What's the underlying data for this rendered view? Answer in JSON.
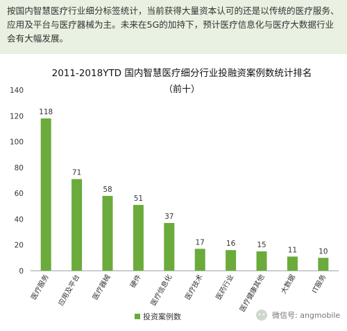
{
  "intro_text": "按国内智慧医疗行业细分标签统计，当前获得大量资本认可的还是以传统的医疗服务、应用及平台与医疗器械为主。未来在5G的加持下，预计医疗信息化与医疗大数据行业会有大幅发展。",
  "watermark": "微信号: angmobile",
  "colors": {
    "bar": "#6aab3c",
    "intro_bg": "#e9f1e2",
    "axis": "#999999",
    "text": "#333333"
  },
  "chart_data": {
    "type": "bar",
    "title": "2011-2018YTD 国内智慧医疗细分行业投融资案例数统计排名",
    "subtitle": "（前十）",
    "categories": [
      "医疗服务",
      "应用及平台",
      "医疗器械",
      "硬件",
      "医疗信息化",
      "医疗技术",
      "医药行业",
      "医疗健康其他",
      "大数据",
      "IT服务"
    ],
    "series": [
      {
        "name": "投资案例数",
        "values": [
          118,
          71,
          58,
          51,
          37,
          17,
          16,
          15,
          11,
          10
        ]
      }
    ],
    "y_ticks": [
      0,
      20,
      40,
      60,
      80,
      100,
      120,
      140
    ],
    "ylim": [
      0,
      140
    ],
    "legend_position": "bottom",
    "grid": false
  }
}
